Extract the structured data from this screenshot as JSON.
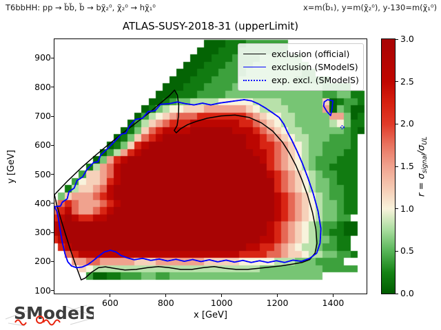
{
  "header": {
    "left": "T6bbHH: pp → b̃b̃, b̃ → bχ̃₂⁰, χ̃₂⁰ → hχ̃₁⁰",
    "right": "x=m(b̃₁), y=m(χ̃₂⁰), y-130=m(χ̃₁⁰)"
  },
  "title": "ATLAS-SUSY-2018-31 (upperLimit)",
  "axes": {
    "xlabel": "x [GeV]",
    "ylabel": "y [GeV]",
    "xlim": [
      400,
      1520
    ],
    "ylim": [
      90,
      965
    ],
    "xtick_values": [
      600,
      800,
      1000,
      1200,
      1400
    ],
    "xtick_labels": [
      "600",
      "800",
      "1000",
      "1200",
      "1400"
    ],
    "ytick_values": [
      100,
      200,
      300,
      400,
      500,
      600,
      700,
      800,
      900
    ],
    "ytick_labels": [
      "100",
      "200",
      "300",
      "400",
      "500",
      "600",
      "700",
      "800",
      "900"
    ]
  },
  "legend": {
    "items": [
      {
        "label": "exclusion (official)",
        "color": "#000000",
        "dash": "solid"
      },
      {
        "label": "exclusion (SModelS)",
        "color": "#0000ff",
        "dash": "solid"
      },
      {
        "label": "exp. excl. (SModelS)",
        "color": "#0000ff",
        "dash": "dotted"
      }
    ]
  },
  "colorbar": {
    "label_prefix": "r = σ",
    "label_sub1": "signal",
    "label_mid": "/σ",
    "label_sub2": "UL",
    "tick_values": [
      0,
      0.5,
      1,
      1.5,
      2,
      2.5,
      3
    ],
    "tick_labels": [
      "0.0",
      "0.5",
      "1.0",
      "1.5",
      "2.0",
      "2.5",
      "3.0"
    ],
    "vmin": 0,
    "vmax": 3
  },
  "logo_text": "SModelS",
  "chart_data": {
    "type": "heatmap",
    "quantity": "r = sigma_signal / sigma_UL",
    "x_unit": "GeV",
    "y_unit": "GeV",
    "x_start": 400,
    "x_step": 25,
    "y_start": 950,
    "y_step": -25,
    "value_map": {
      ".": null,
      "0": 0.05,
      "1": 0.2,
      "2": 0.4,
      "3": 0.6,
      "4": 0.8,
      "5": 1.0,
      "6": 1.2,
      "7": 1.5,
      "8": 1.8,
      "9": 2.2,
      "A": 2.6,
      "B": 3.0
    },
    "rows": [
      "......................000111222222...........",
      ".....................0001112222222...........",
      "....................0001112222333333.........",
      "...................000111222233333333........",
      "..................00011122223333333322.......",
      ".................00011122223333333322222.....",
      "................000111222233333333333332222..",
      "...............000111222233333333333333223311",
      "..............0012334444555554444333333601221",
      ".............01345566677777765444433333703200",
      "............024567888999999987655443333377301",
      "...........024678999AAAAAAA998765443333345311",
      "..........013689AAAABBBBBBAAA9876544333333210",
      ".........013689ABBBBBBBBBBBBAA98765443332221.",
      "........01369ABBBBBBBBBBBBBBAA99876543322221.",
      ".......02479ABBBBBBBBBBBBBBBBAA9876543322211.",
      "......0379ABBBBBBBBBBBBBBBBBBBA9876543222111.",
      ".....1478ABBBBBBBBBBBBBBBBBBBBB9876543221111.",
      "....26678ABBBBBBBBBBBBBBBBBBBBBA987654322111.",
      "...256679ABBBBBBBBBBBBBBBBBBBBBB987654332111.",
      "..146678ABBBBBBBBBBBBBBBBBBBBBBB987654332211.",
      ".3677789ABBBBBBBBBBBBBBBBBBBBBBBA98765432211.",
      "689877789ABBBBBBBBBBBBBBBBBBBBBBA98765433211.",
      "89A87789ABBBBBBBBBBBBBBBBBBBBBBBA98765433211.",
      "9ABA99AABBBBBBBBBBBBBBBBBBBBBBBBA9876543322..",
      "ABBBBBBBBBBBBBBBBBBBBBBBBBBBBBBA987654322100",
      "ABBBBBBBBBBBBBBBBBBBBBBBBBBBBBBA987654321100",
      "9ABBBBBBBBBBBBBBBBBBBBBBBBBBBBAA98765433211..",
      ".9ABBBBBBBBBBBBBBBBBBBBBBBBBAA9987654432211..",
      "..89AAAAAAAAAAAAAAAAAAAAAAA99998876654433221...",
      "...778877777666777777766666555554443332222...",
      "....6544444444444444444444444433333333322222....",
      ".....2001122233223333333333333333333333......"
    ],
    "colormap_stops": [
      [
        0.0,
        "#005c00"
      ],
      [
        0.25,
        "#158315"
      ],
      [
        0.5,
        "#57b558"
      ],
      [
        0.75,
        "#a8dd9e"
      ],
      [
        1.0,
        "#f8f3dc"
      ],
      [
        1.25,
        "#f5c9b2"
      ],
      [
        1.5,
        "#f0a28e"
      ],
      [
        1.75,
        "#e87460"
      ],
      [
        2.0,
        "#e03a28"
      ],
      [
        2.25,
        "#d6200f"
      ],
      [
        2.5,
        "#c00600"
      ],
      [
        3.0,
        "#a80404"
      ]
    ],
    "contours": {
      "official": {
        "color": "#000000",
        "style": "solid",
        "points": [
          [
            400,
            430
          ],
          [
            448,
            478
          ],
          [
            498,
            524
          ],
          [
            548,
            566
          ],
          [
            598,
            606
          ],
          [
            648,
            644
          ],
          [
            698,
            681
          ],
          [
            743,
            714
          ],
          [
            783,
            747
          ],
          [
            813,
            771
          ],
          [
            831,
            790
          ],
          [
            841,
            773
          ],
          [
            846,
            737
          ],
          [
            845,
            700
          ],
          [
            840,
            668
          ],
          [
            830,
            651
          ],
          [
            837,
            643
          ],
          [
            853,
            657
          ],
          [
            878,
            671
          ],
          [
            908,
            682
          ],
          [
            948,
            693
          ],
          [
            998,
            701
          ],
          [
            1048,
            704
          ],
          [
            1098,
            696
          ],
          [
            1143,
            677
          ],
          [
            1183,
            649
          ],
          [
            1218,
            611
          ],
          [
            1243,
            573
          ],
          [
            1266,
            531
          ],
          [
            1288,
            481
          ],
          [
            1308,
            429
          ],
          [
            1326,
            369
          ],
          [
            1338,
            311
          ],
          [
            1342,
            263
          ],
          [
            1335,
            229
          ],
          [
            1316,
            207
          ],
          [
            1288,
            197
          ],
          [
            1253,
            191
          ],
          [
            1213,
            185
          ],
          [
            1173,
            181
          ],
          [
            1133,
            177
          ],
          [
            1093,
            173
          ],
          [
            1053,
            173
          ],
          [
            1013,
            177
          ],
          [
            973,
            183
          ],
          [
            933,
            179
          ],
          [
            893,
            173
          ],
          [
            853,
            173
          ],
          [
            813,
            179
          ],
          [
            773,
            183
          ],
          [
            733,
            179
          ],
          [
            693,
            173
          ],
          [
            653,
            171
          ],
          [
            613,
            177
          ],
          [
            583,
            182
          ],
          [
            558,
            179
          ],
          [
            533,
            163
          ],
          [
            510,
            143
          ],
          [
            496,
            137
          ],
          [
            477,
            186
          ],
          [
            457,
            241
          ],
          [
            439,
            296
          ],
          [
            423,
            346
          ],
          [
            409,
            393
          ]
        ]
      },
      "smodels": {
        "color": "#0000ff",
        "style": "solid",
        "points": [
          [
            400,
            389
          ],
          [
            422,
            391
          ],
          [
            428,
            404
          ],
          [
            446,
            416
          ],
          [
            452,
            440
          ],
          [
            471,
            453
          ],
          [
            481,
            479
          ],
          [
            501,
            491
          ],
          [
            516,
            516
          ],
          [
            541,
            541
          ],
          [
            556,
            543
          ],
          [
            566,
            566
          ],
          [
            591,
            589
          ],
          [
            616,
            613
          ],
          [
            641,
            639
          ],
          [
            656,
            641
          ],
          [
            669,
            666
          ],
          [
            691,
            689
          ],
          [
            716,
            693
          ],
          [
            736,
            716
          ],
          [
            761,
            719
          ],
          [
            781,
            741
          ],
          [
            811,
            743
          ],
          [
            841,
            749
          ],
          [
            871,
            743
          ],
          [
            901,
            739
          ],
          [
            931,
            745
          ],
          [
            961,
            739
          ],
          [
            991,
            745
          ],
          [
            1021,
            749
          ],
          [
            1051,
            753
          ],
          [
            1081,
            757
          ],
          [
            1106,
            753
          ],
          [
            1131,
            743
          ],
          [
            1156,
            729
          ],
          [
            1181,
            713
          ],
          [
            1206,
            696
          ],
          [
            1223,
            673
          ],
          [
            1236,
            646
          ],
          [
            1251,
            619
          ],
          [
            1269,
            583
          ],
          [
            1289,
            539
          ],
          [
            1309,
            489
          ],
          [
            1329,
            433
          ],
          [
            1346,
            373
          ],
          [
            1356,
            313
          ],
          [
            1353,
            263
          ],
          [
            1341,
            229
          ],
          [
            1316,
            211
          ],
          [
            1286,
            201
          ],
          [
            1256,
            205
          ],
          [
            1226,
            197
          ],
          [
            1196,
            203
          ],
          [
            1166,
            197
          ],
          [
            1136,
            203
          ],
          [
            1106,
            197
          ],
          [
            1076,
            204
          ],
          [
            1046,
            198
          ],
          [
            1016,
            205
          ],
          [
            986,
            199
          ],
          [
            956,
            206
          ],
          [
            926,
            200
          ],
          [
            896,
            207
          ],
          [
            866,
            201
          ],
          [
            836,
            208
          ],
          [
            806,
            202
          ],
          [
            776,
            209
          ],
          [
            746,
            204
          ],
          [
            716,
            211
          ],
          [
            686,
            206
          ],
          [
            661,
            213
          ],
          [
            639,
            221
          ],
          [
            621,
            233
          ],
          [
            601,
            239
          ],
          [
            579,
            233
          ],
          [
            559,
            219
          ],
          [
            539,
            203
          ],
          [
            519,
            189
          ],
          [
            499,
            181
          ],
          [
            479,
            179
          ],
          [
            461,
            185
          ],
          [
            448,
            199
          ],
          [
            438,
            226
          ],
          [
            429,
            263
          ],
          [
            421,
            306
          ],
          [
            414,
            349
          ],
          [
            409,
            373
          ]
        ]
      },
      "smodels_island": {
        "color": "#0000ff",
        "style": "solid",
        "points": [
          [
            1368,
            749
          ],
          [
            1380,
            757
          ],
          [
            1399,
            753
          ],
          [
            1396,
            725
          ],
          [
            1391,
            702
          ],
          [
            1377,
            717
          ],
          [
            1366,
            735
          ]
        ]
      },
      "expected": {
        "color": "#0000ff",
        "style": "dotted",
        "coincides_with": "smodels",
        "dot_point": [
          1433,
          662
        ]
      }
    }
  }
}
